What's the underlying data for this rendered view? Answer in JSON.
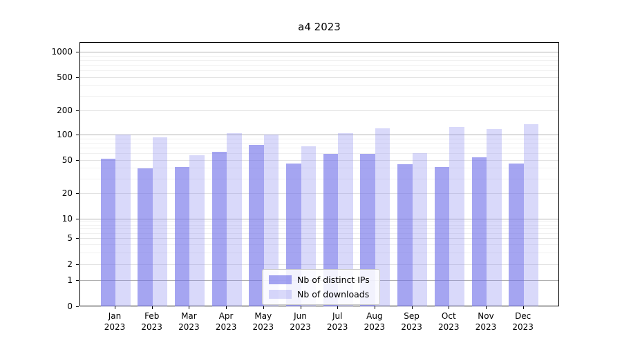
{
  "chart_data": {
    "type": "bar",
    "title": "a4 2023",
    "categories": [
      "Jan",
      "Feb",
      "Mar",
      "Apr",
      "May",
      "Jun",
      "Jul",
      "Aug",
      "Sep",
      "Oct",
      "Nov",
      "Dec"
    ],
    "x_year_label": "2023",
    "series": [
      {
        "name": "Nb of distinct IPs",
        "color": "rgba(110,110,232,0.62)",
        "values": [
          52,
          40,
          42,
          63,
          76,
          46,
          60,
          60,
          45,
          42,
          54,
          46
        ]
      },
      {
        "name": "Nb of downloads",
        "color": "rgba(130,130,238,0.30)",
        "values": [
          101,
          95,
          58,
          106,
          103,
          74,
          107,
          123,
          61,
          127,
          120,
          136
        ]
      }
    ],
    "y_ticks": [
      0,
      1,
      2,
      5,
      10,
      20,
      50,
      100,
      200,
      500,
      1000
    ],
    "y_major_gridlines": [
      1,
      10,
      100,
      1000
    ],
    "y_minor_gridlines": [
      3,
      4,
      6,
      7,
      8,
      9,
      30,
      40,
      60,
      70,
      80,
      90,
      300,
      400,
      600,
      700,
      800,
      900
    ],
    "ylim": [
      0,
      1000
    ],
    "y_scale": "quasi-log (symlog-like, linear near zero)",
    "grid": "on",
    "legend_position": "inside lower-center"
  }
}
